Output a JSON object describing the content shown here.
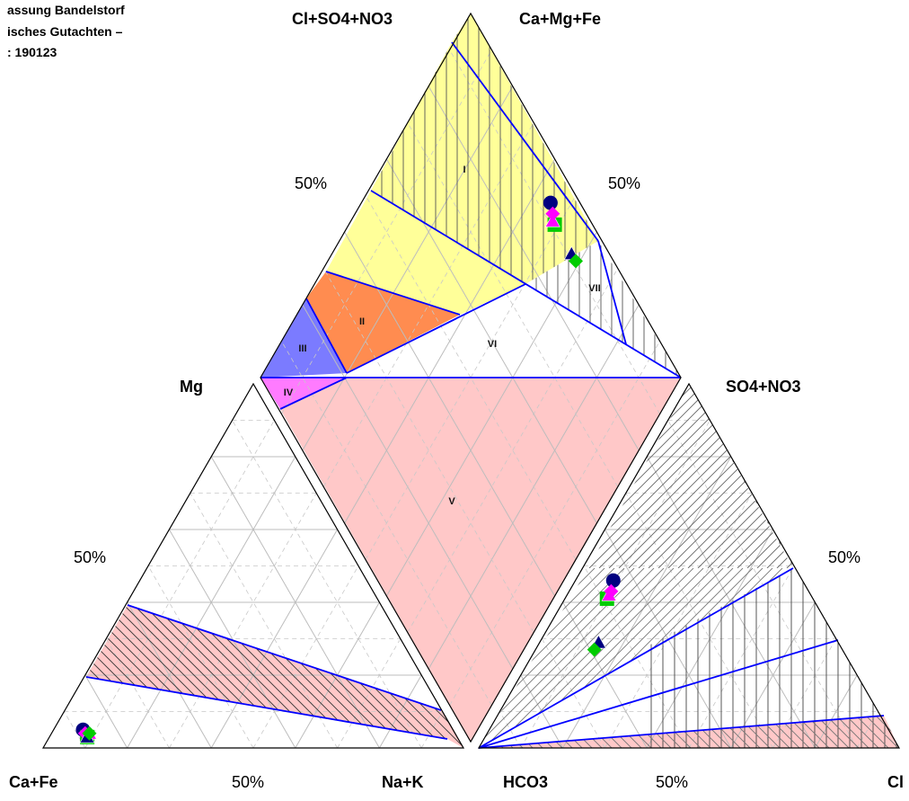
{
  "header": {
    "lines": [
      "assung Bandelstorf",
      "isches Gutachten –",
      ": 190123"
    ]
  },
  "chart_data": {
    "type": "scatter",
    "subtype": "piper-diagram",
    "cation_triangle": {
      "left_vertex": "Ca+Fe",
      "right_vertex": "Na+K",
      "top_vertex": "Mg",
      "mid_label": "50%",
      "side_label": "50%"
    },
    "anion_triangle": {
      "left_vertex": "HCO3",
      "right_vertex": "Cl",
      "top_vertex": "SO4+NO3",
      "mid_label": "50%",
      "side_label": "50%"
    },
    "diamond": {
      "top_left_label": "Cl+SO4+NO3",
      "top_right_label": "Ca+Mg+Fe",
      "left_pct": "50%",
      "right_pct": "50%"
    },
    "zones": [
      "I",
      "II",
      "III",
      "IV",
      "V",
      "VI",
      "VII"
    ],
    "zone_colors": {
      "I": "#ffff99",
      "II": "#ff8c50",
      "III": "#7b7bff",
      "IV": "#ff7bff",
      "V": "#ffc8c8",
      "VI": "#ffffff",
      "VII": "#ffffff"
    },
    "boundary_color": "#0000ff",
    "grid": true,
    "samples": [
      {
        "marker": "circle",
        "color": "#000080",
        "ca": 88,
        "mg": 5,
        "nak": 7,
        "hco3": 45,
        "so4": 46,
        "cl": 9
      },
      {
        "marker": "square",
        "color": "#00cc00",
        "ca": 88,
        "mg": 3,
        "nak": 9,
        "hco3": 49,
        "so4": 41,
        "cl": 10
      },
      {
        "marker": "triangle",
        "color": "#ff00ff",
        "ca": 87,
        "mg": 4,
        "nak": 9,
        "hco3": 48,
        "so4": 42,
        "cl": 10
      },
      {
        "marker": "diamond",
        "color": "#ff00ff",
        "ca": 88,
        "mg": 4,
        "nak": 8,
        "hco3": 47,
        "so4": 43,
        "cl": 10
      },
      {
        "marker": "triangle",
        "color": "#000080",
        "ca": 88,
        "mg": 3,
        "nak": 9,
        "hco3": 57,
        "so4": 29,
        "cl": 14
      },
      {
        "marker": "diamond",
        "color": "#00cc00",
        "ca": 87,
        "mg": 4,
        "nak": 9,
        "hco3": 59,
        "so4": 27,
        "cl": 14
      }
    ]
  }
}
